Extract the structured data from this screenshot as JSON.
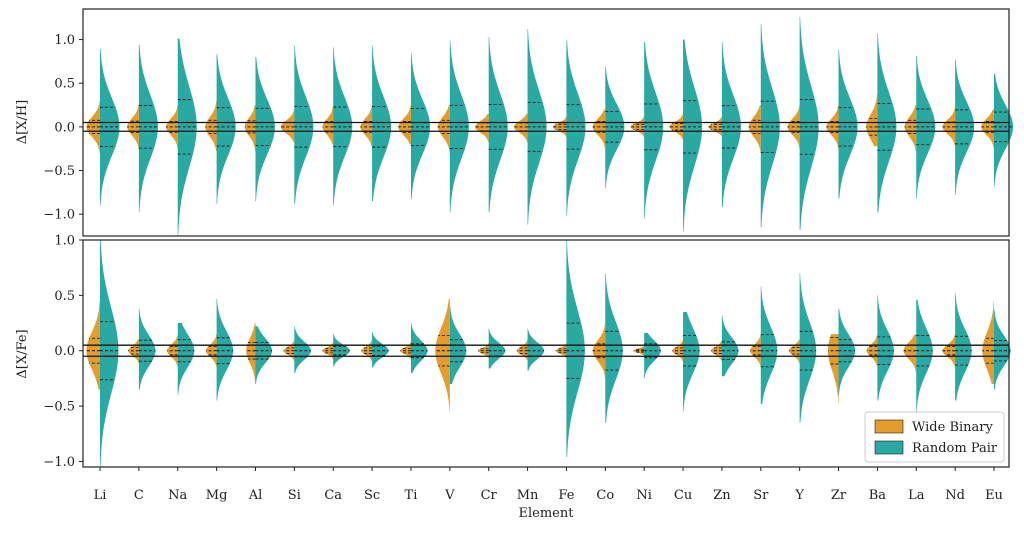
{
  "chart_data": {
    "type": "violin",
    "xlabel": "Element",
    "elements": [
      "Li",
      "C",
      "Na",
      "Mg",
      "Al",
      "Si",
      "Ca",
      "Sc",
      "Ti",
      "V",
      "Cr",
      "Mn",
      "Fe",
      "Co",
      "Ni",
      "Cu",
      "Zn",
      "Sr",
      "Y",
      "Zr",
      "Ba",
      "La",
      "Nd",
      "Eu"
    ],
    "colors": {
      "Wide Binary": "#e39c2e",
      "Random Pair": "#2aa9a3"
    },
    "legend": {
      "placement": "lower right",
      "entries": [
        "Wide Binary",
        "Random Pair"
      ]
    },
    "reference_lines": [
      0.05,
      -0.05
    ],
    "panels": [
      {
        "name": "xh",
        "ylabel": "Δ[X/H]",
        "ylim": [
          -1.25,
          1.35
        ],
        "yticks": [
          1.0,
          0.5,
          0.0,
          -0.5,
          -1.0
        ],
        "ytick_labels": [
          "1.0",
          "0.5",
          "0.0",
          "−0.5",
          "−1.0"
        ],
        "series": [
          {
            "name": "Wide Binary",
            "side": "left",
            "min": [
              -0.3,
              -0.26,
              -0.25,
              -0.28,
              -0.28,
              -0.18,
              -0.2,
              -0.22,
              -0.2,
              -0.3,
              -0.18,
              -0.18,
              -0.12,
              -0.25,
              -0.12,
              -0.15,
              -0.1,
              -0.3,
              -0.25,
              -0.25,
              -0.22,
              -0.3,
              -0.22,
              -0.25
            ],
            "max": [
              0.3,
              0.26,
              0.24,
              0.3,
              0.25,
              0.2,
              0.24,
              0.25,
              0.25,
              0.25,
              0.15,
              0.15,
              0.12,
              0.2,
              0.12,
              0.15,
              0.12,
              0.25,
              0.25,
              0.25,
              0.38,
              0.25,
              0.22,
              0.2
            ],
            "width": [
              0.7,
              0.6,
              0.6,
              0.58,
              0.55,
              0.7,
              0.55,
              0.6,
              0.65,
              0.62,
              0.7,
              0.7,
              0.7,
              0.65,
              0.7,
              0.7,
              0.7,
              0.62,
              0.62,
              0.62,
              0.58,
              0.6,
              0.65,
              0.65
            ]
          },
          {
            "name": "Random Pair",
            "side": "right",
            "min": [
              -0.9,
              -0.98,
              -1.25,
              -0.88,
              -0.85,
              -0.88,
              -0.9,
              -0.85,
              -0.83,
              -0.98,
              -0.98,
              -1.12,
              -1.02,
              -0.7,
              -1.05,
              -1.2,
              -0.92,
              -1.15,
              -1.18,
              -0.82,
              -0.98,
              -0.82,
              -0.78,
              -0.68
            ],
            "max": [
              0.89,
              0.94,
              1.01,
              0.83,
              0.8,
              0.93,
              0.91,
              0.93,
              0.85,
              0.99,
              1.03,
              1.12,
              0.99,
              0.69,
              0.97,
              1.0,
              0.97,
              1.18,
              1.26,
              0.88,
              1.07,
              0.81,
              0.77,
              0.61
            ],
            "width": [
              1.0,
              0.98,
              0.98,
              0.98,
              1.0,
              0.98,
              0.98,
              0.98,
              0.98,
              0.98,
              0.98,
              0.98,
              0.98,
              0.98,
              0.98,
              0.98,
              0.98,
              0.98,
              0.98,
              0.98,
              0.98,
              0.98,
              0.98,
              0.98
            ]
          }
        ]
      },
      {
        "name": "xfe",
        "ylabel": "Δ[X/Fe]",
        "ylim": [
          -1.05,
          1.0
        ],
        "yticks": [
          1.0,
          0.5,
          0.0,
          -0.5,
          -1.0
        ],
        "ytick_labels": [
          "1.0",
          "0.5",
          "0.0",
          "−0.5",
          "−1.0"
        ],
        "series": [
          {
            "name": "Wide Binary",
            "side": "left",
            "min": [
              -0.35,
              -0.12,
              -0.15,
              -0.15,
              -0.3,
              -0.1,
              -0.08,
              -0.1,
              -0.08,
              -0.55,
              -0.07,
              -0.08,
              -0.07,
              -0.25,
              -0.05,
              -0.1,
              -0.1,
              -0.15,
              -0.12,
              -0.48,
              -0.15,
              -0.2,
              -0.15,
              -0.3
            ],
            "max": [
              0.45,
              0.1,
              0.15,
              0.15,
              0.25,
              0.1,
              0.08,
              0.1,
              0.08,
              0.47,
              0.07,
              0.1,
              0.07,
              0.25,
              0.05,
              0.1,
              0.1,
              0.15,
              0.1,
              0.15,
              0.15,
              0.15,
              0.15,
              0.45
            ],
            "width": [
              0.7,
              0.55,
              0.55,
              0.55,
              0.48,
              0.55,
              0.55,
              0.55,
              0.55,
              0.75,
              0.55,
              0.55,
              0.55,
              0.65,
              0.55,
              0.55,
              0.55,
              0.55,
              0.55,
              0.55,
              0.55,
              0.65,
              0.65,
              0.6
            ]
          },
          {
            "name": "Random Pair",
            "side": "right",
            "min": [
              -1.05,
              -0.35,
              -0.4,
              -0.45,
              -0.3,
              -0.2,
              -0.14,
              -0.15,
              -0.2,
              -0.3,
              -0.16,
              -0.18,
              -0.96,
              -0.65,
              -0.25,
              -0.55,
              -0.23,
              -0.48,
              -0.65,
              -0.4,
              -0.45,
              -0.55,
              -0.45,
              -0.35
            ],
            "max": [
              1.0,
              0.38,
              0.25,
              0.47,
              0.22,
              0.22,
              0.15,
              0.17,
              0.25,
              0.4,
              0.2,
              0.2,
              1.0,
              0.7,
              0.16,
              0.35,
              0.32,
              0.58,
              0.7,
              0.38,
              0.5,
              0.46,
              0.52,
              0.37
            ],
            "width": [
              0.95,
              0.85,
              0.85,
              0.85,
              0.85,
              0.85,
              0.85,
              0.85,
              0.85,
              0.85,
              0.85,
              0.85,
              0.95,
              0.9,
              0.85,
              0.85,
              0.85,
              0.85,
              0.85,
              0.85,
              0.85,
              0.85,
              0.85,
              0.85
            ]
          }
        ]
      }
    ]
  }
}
